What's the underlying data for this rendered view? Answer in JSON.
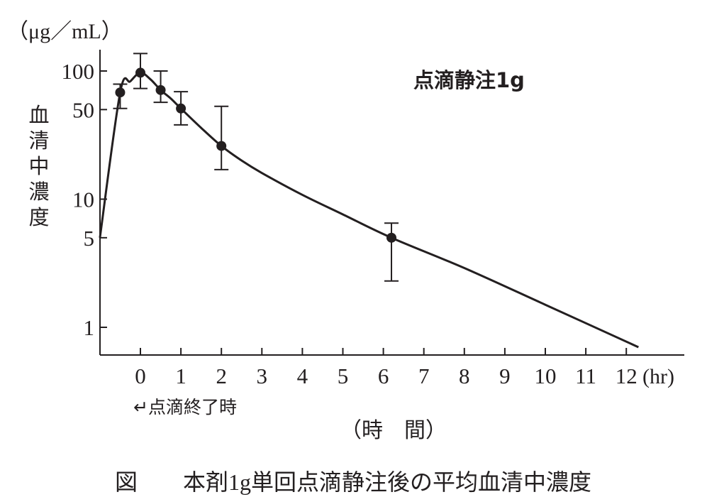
{
  "chart_data": {
    "type": "line",
    "title": "点滴静注1g",
    "ylabel": "血清中濃度",
    "yunit": "（μg／mL）",
    "xlabel": "（時　間）",
    "xunit": "(hr)",
    "y_scale": "log",
    "ylim": [
      0.65,
      100
    ],
    "xlim": [
      -1,
      13.5
    ],
    "yticks": [
      1,
      5,
      10,
      50,
      100
    ],
    "ytick_labels": [
      "1",
      "5",
      "10",
      "50",
      "100"
    ],
    "xticks": [
      0,
      1,
      2,
      3,
      4,
      5,
      6,
      7,
      8,
      9,
      10,
      11,
      12
    ],
    "xtick_labels": [
      "0",
      "1",
      "2",
      "3",
      "4",
      "5",
      "6",
      "7",
      "8",
      "9",
      "10",
      "11",
      "12"
    ],
    "annotation": "点滴終了時",
    "grid": false,
    "series": [
      {
        "points": [
          {
            "x": -0.5,
            "y": 68,
            "lo": 51,
            "hi": 79
          },
          {
            "x": 0,
            "y": 97,
            "lo": 73,
            "hi": 137
          },
          {
            "x": 0.5,
            "y": 71,
            "lo": 57,
            "hi": 100
          },
          {
            "x": 1,
            "y": 51,
            "lo": 38,
            "hi": 69
          },
          {
            "x": 2,
            "y": 26,
            "lo": 17,
            "hi": 53
          },
          {
            "x": 6.2,
            "y": 5,
            "lo": 2.3,
            "hi": 6.5
          }
        ],
        "curve": [
          {
            "x": -1,
            "y": 5
          },
          {
            "x": -0.5,
            "y": 68
          },
          {
            "x": -0.25,
            "y": 83
          },
          {
            "x": 0,
            "y": 97
          },
          {
            "x": 0.25,
            "y": 86
          },
          {
            "x": 0.5,
            "y": 71
          },
          {
            "x": 0.75,
            "y": 61
          },
          {
            "x": 1,
            "y": 51
          },
          {
            "x": 1.5,
            "y": 36
          },
          {
            "x": 2,
            "y": 26
          },
          {
            "x": 2.5,
            "y": 20
          },
          {
            "x": 3,
            "y": 16
          },
          {
            "x": 4,
            "y": 10.8
          },
          {
            "x": 5,
            "y": 7.6
          },
          {
            "x": 6.2,
            "y": 5
          },
          {
            "x": 8,
            "y": 2.9
          },
          {
            "x": 10,
            "y": 1.5
          },
          {
            "x": 12.3,
            "y": 0.7
          }
        ]
      }
    ]
  },
  "caption": "図　　本剤1g単回点滴静注後の平均血清中濃度"
}
